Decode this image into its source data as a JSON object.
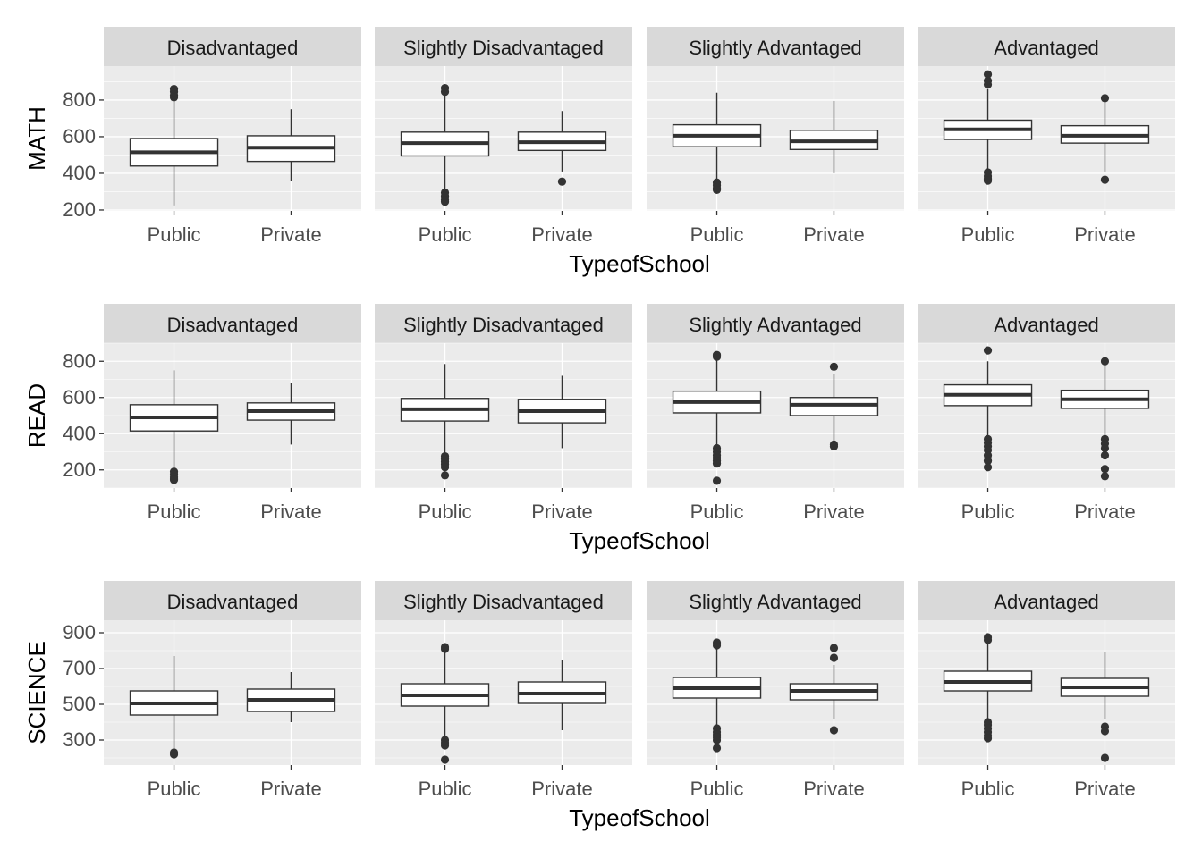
{
  "chart_data": [
    {
      "type": "boxplot",
      "ylabel": "MATH",
      "xlabel": "TypeofSchool",
      "yticks": [
        200,
        400,
        600,
        800
      ],
      "ylim": [
        195,
        985
      ],
      "facets": [
        {
          "label": "Disadvantaged",
          "boxes": [
            {
              "x": "Public",
              "lower": 225,
              "q1": 440,
              "median": 515,
              "q3": 590,
              "upper": 800,
              "outliers": [
                815,
                825,
                845,
                860
              ]
            },
            {
              "x": "Private",
              "lower": 360,
              "q1": 465,
              "median": 540,
              "q3": 605,
              "upper": 750,
              "outliers": []
            }
          ]
        },
        {
          "label": "Slightly Disadvantaged",
          "boxes": [
            {
              "x": "Public",
              "lower": 310,
              "q1": 495,
              "median": 565,
              "q3": 625,
              "upper": 830,
              "outliers": [
                845,
                865,
                295,
                275,
                255,
                245
              ]
            },
            {
              "x": "Private",
              "lower": 410,
              "q1": 525,
              "median": 570,
              "q3": 625,
              "upper": 740,
              "outliers": [
                355
              ]
            }
          ]
        },
        {
          "label": "Slightly Advantaged",
          "boxes": [
            {
              "x": "Public",
              "lower": 370,
              "q1": 545,
              "median": 605,
              "q3": 665,
              "upper": 840,
              "outliers": [
                350,
                335,
                320,
                310
              ]
            },
            {
              "x": "Private",
              "lower": 400,
              "q1": 530,
              "median": 575,
              "q3": 635,
              "upper": 795,
              "outliers": []
            }
          ]
        },
        {
          "label": "Advantaged",
          "boxes": [
            {
              "x": "Public",
              "lower": 420,
              "q1": 585,
              "median": 640,
              "q3": 690,
              "upper": 860,
              "outliers": [
                885,
                905,
                940,
                405,
                385,
                370,
                360
              ]
            },
            {
              "x": "Private",
              "lower": 410,
              "q1": 565,
              "median": 605,
              "q3": 660,
              "upper": 790,
              "outliers": [
                810,
                365
              ]
            }
          ]
        }
      ]
    },
    {
      "type": "boxplot",
      "ylabel": "READ",
      "xlabel": "TypeofSchool",
      "yticks": [
        200,
        400,
        600,
        800
      ],
      "ylim": [
        100,
        900
      ],
      "facets": [
        {
          "label": "Disadvantaged",
          "boxes": [
            {
              "x": "Public",
              "lower": 205,
              "q1": 415,
              "median": 490,
              "q3": 560,
              "upper": 750,
              "outliers": [
                190,
                175,
                160,
                150,
                145
              ]
            },
            {
              "x": "Private",
              "lower": 340,
              "q1": 475,
              "median": 525,
              "q3": 570,
              "upper": 680,
              "outliers": []
            }
          ]
        },
        {
          "label": "Slightly Disadvantaged",
          "boxes": [
            {
              "x": "Public",
              "lower": 290,
              "q1": 470,
              "median": 535,
              "q3": 595,
              "upper": 785,
              "outliers": [
                275,
                260,
                245,
                230,
                215,
                170
              ]
            },
            {
              "x": "Private",
              "lower": 320,
              "q1": 460,
              "median": 525,
              "q3": 590,
              "upper": 720,
              "outliers": []
            }
          ]
        },
        {
          "label": "Slightly Advantaged",
          "boxes": [
            {
              "x": "Public",
              "lower": 335,
              "q1": 515,
              "median": 575,
              "q3": 635,
              "upper": 815,
              "outliers": [
                825,
                835,
                320,
                300,
                280,
                265,
                250,
                235,
                140
              ]
            },
            {
              "x": "Private",
              "lower": 350,
              "q1": 500,
              "median": 560,
              "q3": 600,
              "upper": 730,
              "outliers": [
                770,
                340,
                330
              ]
            }
          ]
        },
        {
          "label": "Advantaged",
          "boxes": [
            {
              "x": "Public",
              "lower": 385,
              "q1": 555,
              "median": 615,
              "q3": 670,
              "upper": 800,
              "outliers": [
                860,
                370,
                350,
                330,
                310,
                280,
                250,
                215
              ]
            },
            {
              "x": "Private",
              "lower": 390,
              "q1": 540,
              "median": 590,
              "q3": 640,
              "upper": 780,
              "outliers": [
                800,
                370,
                345,
                320,
                280,
                205,
                165
              ]
            }
          ]
        }
      ]
    },
    {
      "type": "boxplot",
      "ylabel": "SCIENCE",
      "xlabel": "TypeofSchool",
      "yticks": [
        300,
        500,
        700,
        900
      ],
      "ylim": [
        160,
        970
      ],
      "facets": [
        {
          "label": "Disadvantaged",
          "boxes": [
            {
              "x": "Public",
              "lower": 240,
              "q1": 440,
              "median": 505,
              "q3": 575,
              "upper": 770,
              "outliers": [
                230,
                220
              ]
            },
            {
              "x": "Private",
              "lower": 400,
              "q1": 460,
              "median": 525,
              "q3": 585,
              "upper": 680,
              "outliers": []
            }
          ]
        },
        {
          "label": "Slightly Disadvantaged",
          "boxes": [
            {
              "x": "Public",
              "lower": 315,
              "q1": 490,
              "median": 550,
              "q3": 615,
              "upper": 800,
              "outliers": [
                810,
                820,
                300,
                285,
                270,
                190
              ]
            },
            {
              "x": "Private",
              "lower": 355,
              "q1": 505,
              "median": 560,
              "q3": 625,
              "upper": 750,
              "outliers": []
            }
          ]
        },
        {
          "label": "Slightly Advantaged",
          "boxes": [
            {
              "x": "Public",
              "lower": 380,
              "q1": 535,
              "median": 590,
              "q3": 650,
              "upper": 815,
              "outliers": [
                830,
                845,
                365,
                345,
                330,
                315,
                300,
                255
              ]
            },
            {
              "x": "Private",
              "lower": 420,
              "q1": 525,
              "median": 575,
              "q3": 615,
              "upper": 720,
              "outliers": [
                760,
                815,
                355
              ]
            }
          ]
        },
        {
          "label": "Advantaged",
          "boxes": [
            {
              "x": "Public",
              "lower": 415,
              "q1": 575,
              "median": 625,
              "q3": 685,
              "upper": 845,
              "outliers": [
                860,
                875,
                400,
                385,
                365,
                345,
                325,
                310
              ]
            },
            {
              "x": "Private",
              "lower": 420,
              "q1": 545,
              "median": 595,
              "q3": 645,
              "upper": 790,
              "outliers": [
                375,
                350,
                200
              ]
            }
          ]
        }
      ]
    }
  ],
  "colors": {
    "panel_bg": "#EBEBEB",
    "strip_bg": "#D9D9D9",
    "grid_major": "#FFFFFF",
    "box_fill": "#FFFFFF",
    "box_line": "#333333",
    "outlier": "#333333"
  }
}
